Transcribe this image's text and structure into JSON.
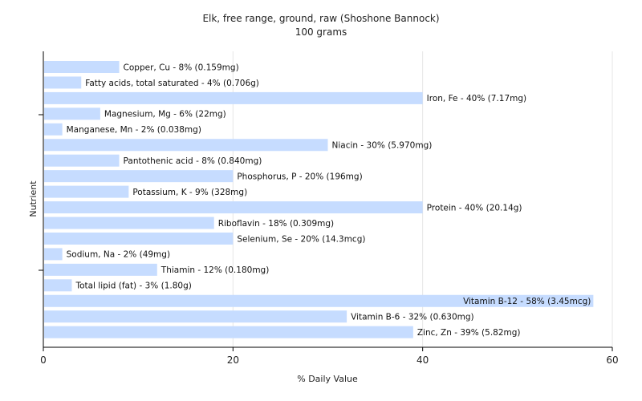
{
  "chart_data": {
    "type": "bar",
    "orientation": "horizontal",
    "title": "Elk, free range, ground, raw (Shoshone Bannock)",
    "subtitle": "100 grams",
    "xlabel": "% Daily Value",
    "ylabel": "Nutrient",
    "xlim": [
      0,
      60
    ],
    "xticks": [
      0,
      20,
      40,
      60
    ],
    "grid": true,
    "bar_color": "#c6dcff",
    "categories": [
      "Copper, Cu",
      "Fatty acids, total saturated",
      "Iron, Fe",
      "Magnesium, Mg",
      "Manganese, Mn",
      "Niacin",
      "Pantothenic acid",
      "Phosphorus, P",
      "Potassium, K",
      "Protein",
      "Riboflavin",
      "Selenium, Se",
      "Sodium, Na",
      "Thiamin",
      "Total lipid (fat)",
      "Vitamin B-12",
      "Vitamin B-6",
      "Zinc, Zn"
    ],
    "values": [
      8,
      4,
      40,
      6,
      2,
      30,
      8,
      20,
      9,
      40,
      18,
      20,
      2,
      12,
      3,
      58,
      32,
      39
    ],
    "labels": [
      "Copper, Cu - 8% (0.159mg)",
      "Fatty acids, total saturated - 4% (0.706g)",
      "Iron, Fe - 40% (7.17mg)",
      "Magnesium, Mg - 6% (22mg)",
      "Manganese, Mn - 2% (0.038mg)",
      "Niacin - 30% (5.970mg)",
      "Pantothenic acid - 8% (0.840mg)",
      "Phosphorus, P - 20% (196mg)",
      "Potassium, K - 9% (328mg)",
      "Protein - 40% (20.14g)",
      "Riboflavin - 18% (0.309mg)",
      "Selenium, Se - 20% (14.3mcg)",
      "Sodium, Na - 2% (49mg)",
      "Thiamin - 12% (0.180mg)",
      "Total lipid (fat) - 3% (1.80g)",
      "Vitamin B-12 - 58% (3.45mcg)",
      "Vitamin B-6 - 32% (0.630mg)",
      "Zinc, Zn - 39% (5.82mg)"
    ]
  }
}
